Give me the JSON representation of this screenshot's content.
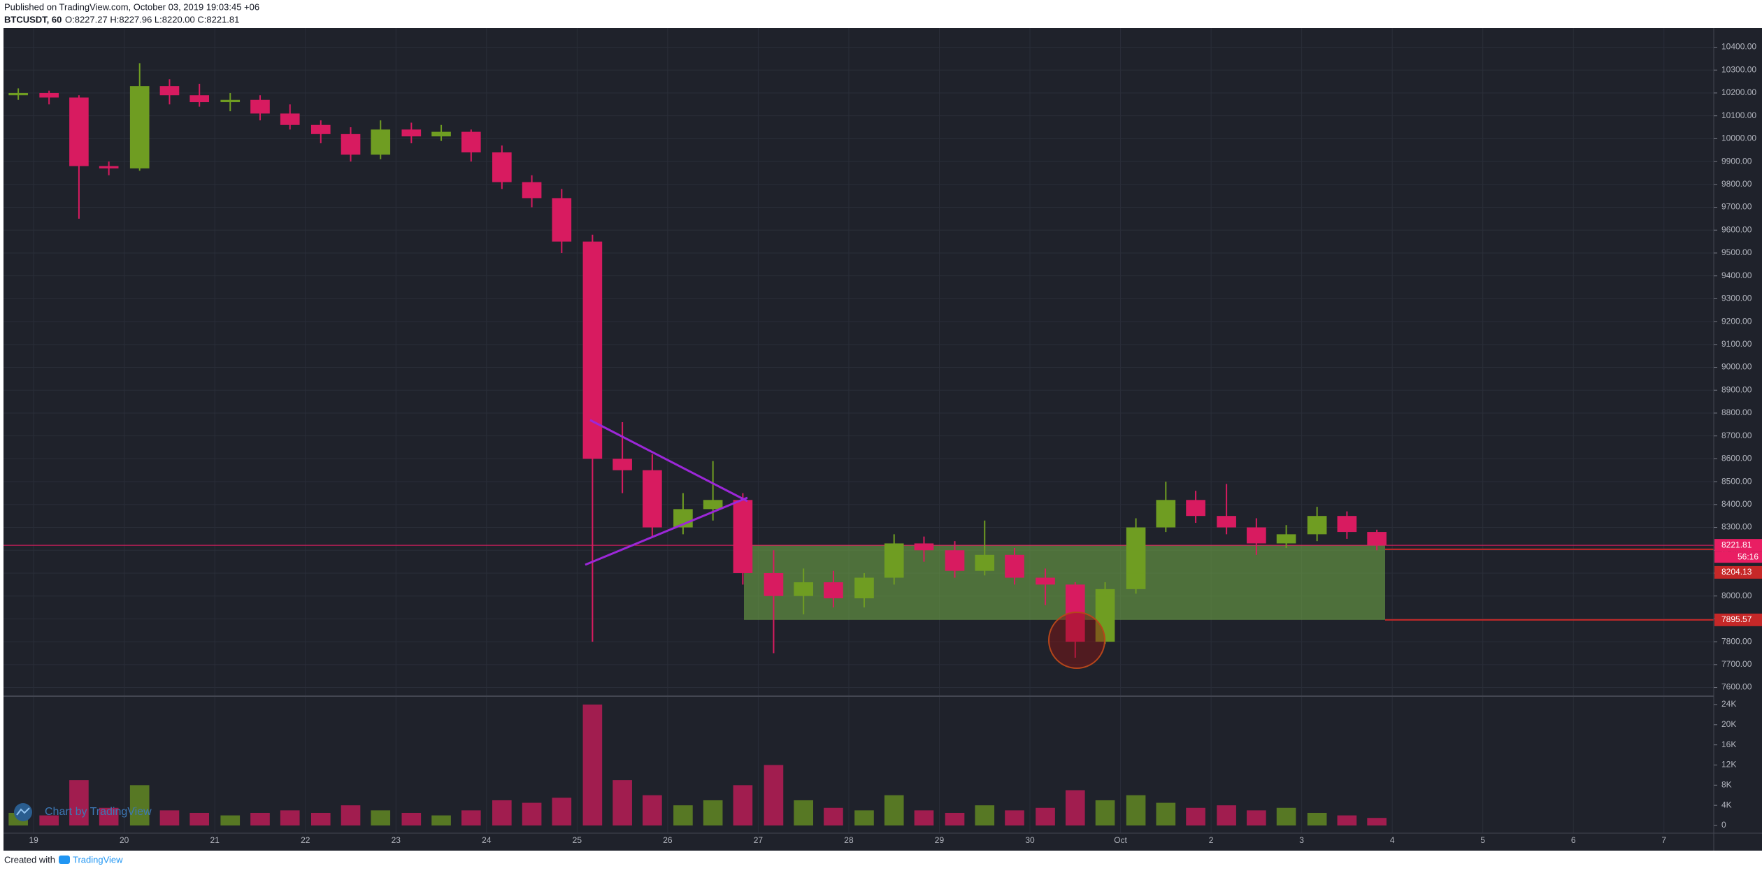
{
  "header": {
    "published": "Published on TradingView.com, October 03, 2019 19:03:45 +06",
    "symbol": "BTCUSDT, 60",
    "ohlc": "O:8227.27 H:8227.96 L:8220.00 C:8221.81"
  },
  "footer": {
    "created": "Created with",
    "brand": "TradingView",
    "watermark": "Chart by TradingView"
  },
  "chart_data": {
    "type": "candlestick",
    "up_color": "#6f9d22",
    "down_color": "#d81b60",
    "grid": true,
    "x": [
      -0.17,
      0.17,
      0.5,
      0.83,
      1.17,
      1.5,
      1.83,
      2.17,
      2.5,
      2.83,
      3.17,
      3.5,
      3.83,
      4.17,
      4.5,
      4.83,
      5.17,
      5.5,
      5.83,
      6.17,
      6.5,
      6.83,
      7.17,
      7.5,
      7.83,
      8.17,
      8.5,
      8.83,
      9.17,
      9.5,
      9.83,
      10.17,
      10.5,
      10.83,
      11.17,
      11.5,
      11.83,
      12.17,
      12.5,
      12.83,
      13.17,
      13.5,
      13.83,
      14.17,
      14.5,
      14.83
    ],
    "series": [
      {
        "open": [
          10190,
          10200,
          10180,
          9880,
          9870,
          10230,
          10190,
          10160,
          10170,
          10110,
          10060,
          10020,
          9930,
          10040,
          10010,
          10030,
          9940,
          9810,
          9740,
          9550,
          8600,
          8550,
          8300,
          8380,
          8420,
          8100,
          8000,
          8060,
          7990,
          8080,
          8230,
          8200,
          8110,
          8180,
          8080,
          8050,
          7800,
          8030,
          8300,
          8420,
          8350,
          8300,
          8230,
          8270,
          8350,
          8280
        ],
        "high": [
          10220,
          10210,
          10190,
          9900,
          10330,
          10260,
          10240,
          10200,
          10190,
          10150,
          10080,
          10050,
          10080,
          10070,
          10060,
          10040,
          9970,
          9840,
          9780,
          9580,
          8760,
          8620,
          8450,
          8590,
          8450,
          8200,
          8120,
          8110,
          8100,
          8270,
          8260,
          8240,
          8330,
          8210,
          8120,
          8060,
          8060,
          8340,
          8500,
          8460,
          8490,
          8340,
          8310,
          8390,
          8370,
          8290
        ],
        "low": [
          10170,
          10150,
          9650,
          9840,
          9860,
          10150,
          10140,
          10120,
          10080,
          10040,
          9980,
          9900,
          9910,
          9980,
          9990,
          9900,
          9780,
          9700,
          9500,
          7800,
          8450,
          8260,
          8270,
          8330,
          8050,
          7750,
          7920,
          7950,
          7950,
          8050,
          8150,
          8080,
          8090,
          8050,
          7960,
          7730,
          7790,
          8010,
          8280,
          8320,
          8270,
          8180,
          8210,
          8240,
          8250,
          8200
        ],
        "close": [
          10200,
          10180,
          9880,
          9870,
          10230,
          10190,
          10160,
          10170,
          10110,
          10060,
          10020,
          9930,
          10040,
          10010,
          10030,
          9940,
          9810,
          9740,
          9550,
          8600,
          8550,
          8300,
          8380,
          8420,
          8100,
          8000,
          8060,
          7990,
          8080,
          8230,
          8200,
          8110,
          8180,
          8080,
          8050,
          7800,
          8030,
          8300,
          8420,
          8350,
          8300,
          8230,
          8270,
          8350,
          8280,
          8221.81
        ]
      }
    ],
    "xlim": [
      -0.31,
      18.55
    ],
    "xticks": [
      {
        "value": 0,
        "label": "19"
      },
      {
        "value": 1,
        "label": "20"
      },
      {
        "value": 2,
        "label": "21"
      },
      {
        "value": 3,
        "label": "22"
      },
      {
        "value": 4,
        "label": "23"
      },
      {
        "value": 5,
        "label": "24"
      },
      {
        "value": 6,
        "label": "25"
      },
      {
        "value": 7,
        "label": "26"
      },
      {
        "value": 8,
        "label": "27"
      },
      {
        "value": 9,
        "label": "28"
      },
      {
        "value": 10,
        "label": "29"
      },
      {
        "value": 11,
        "label": "30"
      },
      {
        "value": 12,
        "label": "Oct"
      },
      {
        "value": 13,
        "label": "2"
      },
      {
        "value": 14,
        "label": "3"
      },
      {
        "value": 15,
        "label": "4"
      },
      {
        "value": 16,
        "label": "5"
      },
      {
        "value": 17,
        "label": "6"
      },
      {
        "value": 18,
        "label": "7"
      }
    ],
    "ylim": [
      7565,
      10475
    ],
    "yticks": [
      {
        "value": 7600,
        "label": "7600.00"
      },
      {
        "value": 7700,
        "label": "7700.00"
      },
      {
        "value": 7800,
        "label": "7800.00"
      },
      {
        "value": 7900,
        "label": "7900.00"
      },
      {
        "value": 8000,
        "label": "8000.00"
      },
      {
        "value": 8100,
        "label": "8100.00"
      },
      {
        "value": 8200,
        "label": "8200.00"
      },
      {
        "value": 8300,
        "label": "8300.00"
      },
      {
        "value": 8400,
        "label": "8400.00"
      },
      {
        "value": 8500,
        "label": "8500.00"
      },
      {
        "value": 8600,
        "label": "8600.00"
      },
      {
        "value": 8700,
        "label": "8700.00"
      },
      {
        "value": 8800,
        "label": "8800.00"
      },
      {
        "value": 8900,
        "label": "8900.00"
      },
      {
        "value": 9000,
        "label": "9000.00"
      },
      {
        "value": 9100,
        "label": "9100.00"
      },
      {
        "value": 9200,
        "label": "9200.00"
      },
      {
        "value": 9300,
        "label": "9300.00"
      },
      {
        "value": 9400,
        "label": "9400.00"
      },
      {
        "value": 9500,
        "label": "9500.00"
      },
      {
        "value": 9600,
        "label": "9600.00"
      },
      {
        "value": 9700,
        "label": "9700.00"
      },
      {
        "value": 9800,
        "label": "9800.00"
      },
      {
        "value": 9900,
        "label": "9900.00"
      },
      {
        "value": 10000,
        "label": "10000.00"
      },
      {
        "value": 10100,
        "label": "10100.00"
      },
      {
        "value": 10200,
        "label": "10200.00"
      },
      {
        "value": 10300,
        "label": "10300.00"
      },
      {
        "value": 10400,
        "label": "10400.00"
      }
    ],
    "price_labels": [
      {
        "value": 8221.81,
        "label": "8221.81",
        "color": "#e91e63"
      },
      {
        "value": 8204.13,
        "label": "8204.13",
        "color": "#c62828"
      },
      {
        "value": 7895.57,
        "label": "7895.57",
        "color": "#c62828"
      }
    ],
    "countdown": "56:16",
    "volume": {
      "values": [
        2500,
        2000,
        9000,
        3500,
        8000,
        3000,
        2500,
        2000,
        2500,
        3000,
        2500,
        4000,
        3000,
        2500,
        2000,
        3000,
        5000,
        4500,
        5500,
        24000,
        9000,
        6000,
        4000,
        5000,
        8000,
        12000,
        5000,
        3500,
        3000,
        6000,
        3000,
        2500,
        4000,
        3000,
        3500,
        7000,
        5000,
        6000,
        4500,
        3500,
        4000,
        3000,
        3500,
        2500,
        2000,
        1500
      ],
      "ylim": [
        -1526,
        25387
      ],
      "yticks": [
        {
          "value": 0,
          "label": "0"
        },
        {
          "value": 4000,
          "label": "4K"
        },
        {
          "value": 8000,
          "label": "8K"
        },
        {
          "value": 12000,
          "label": "12K"
        },
        {
          "value": 16000,
          "label": "16K"
        },
        {
          "value": 20000,
          "label": "20K"
        },
        {
          "value": 24000,
          "label": "24K"
        }
      ]
    }
  }
}
